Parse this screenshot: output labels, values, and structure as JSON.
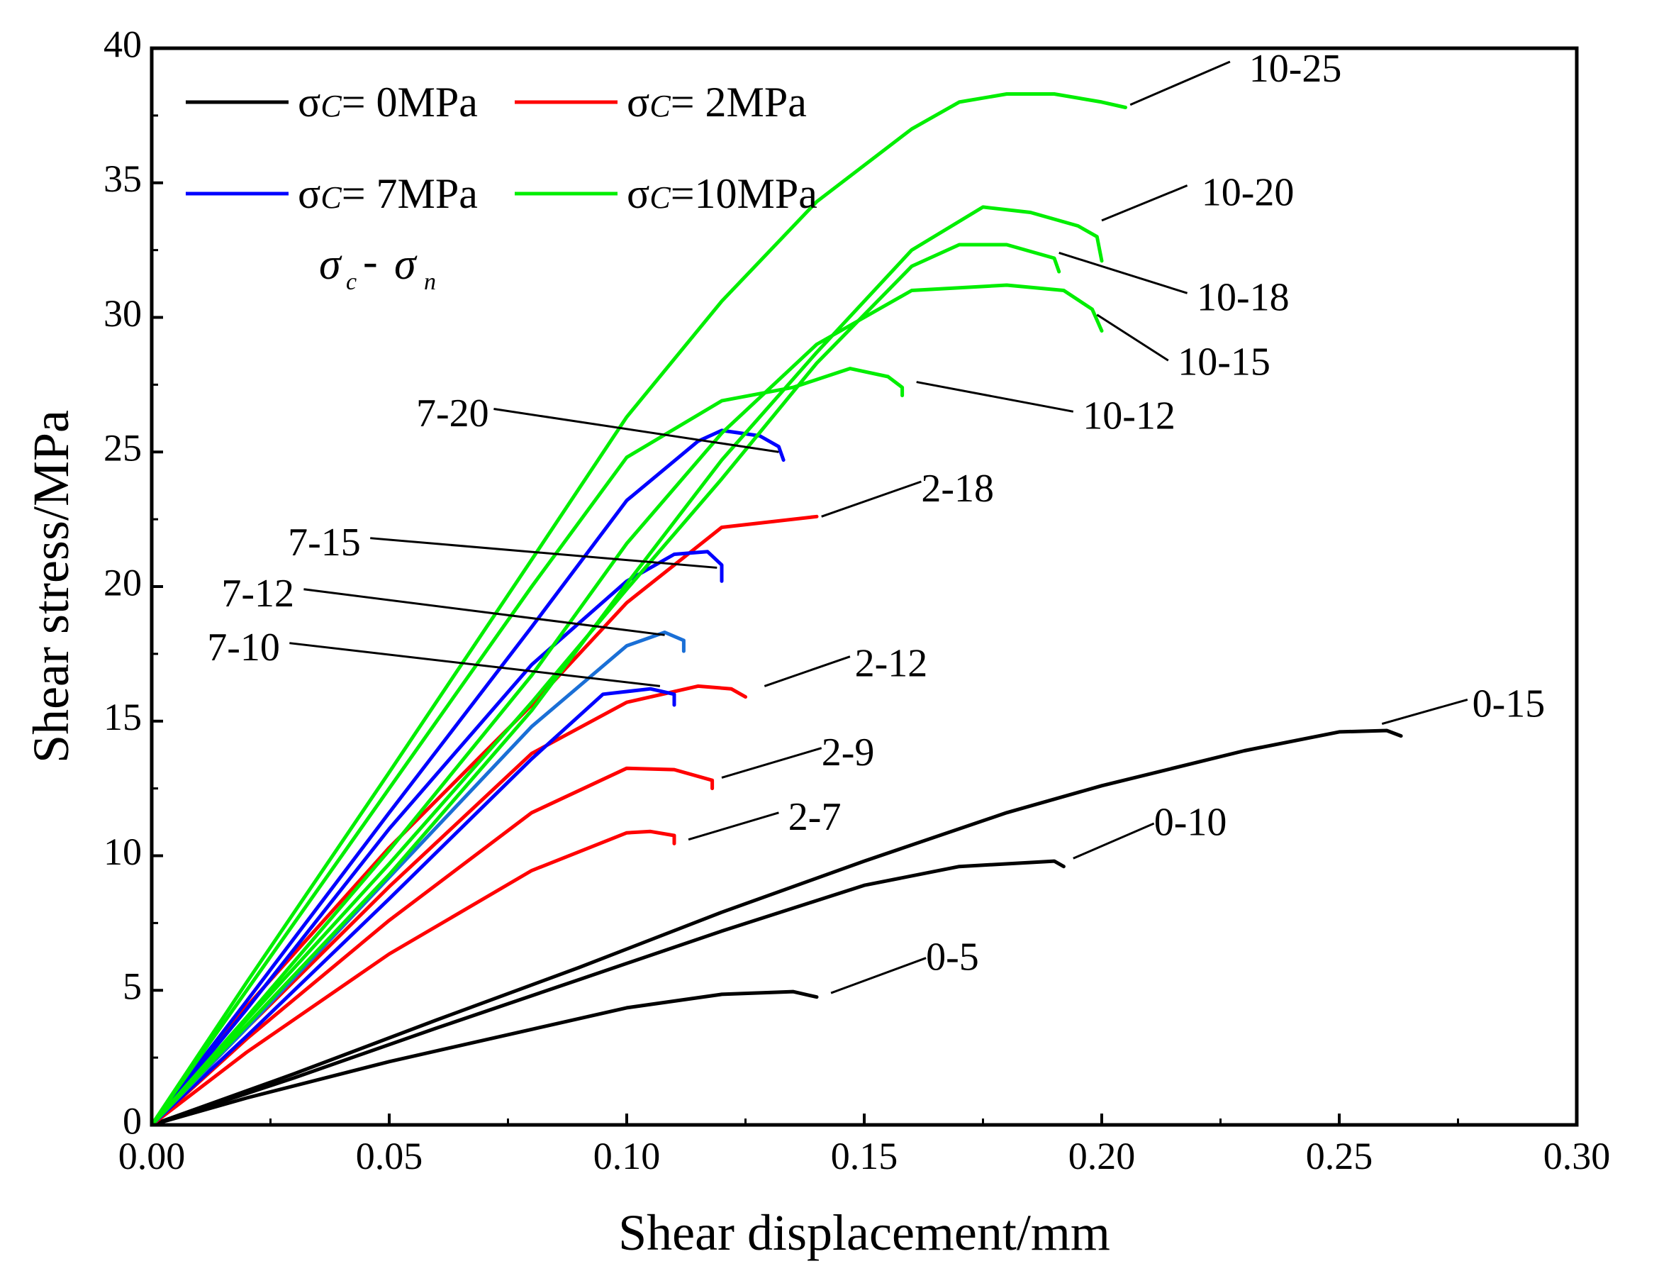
{
  "chart_data": {
    "type": "line",
    "xlabel": "Shear displacement/mm",
    "ylabel": "Shear stress/MPa",
    "xlim": [
      0,
      0.3
    ],
    "ylim": [
      0,
      40
    ],
    "xticks": [
      "0.00",
      "0.05",
      "0.10",
      "0.15",
      "0.20",
      "0.25",
      "0.30"
    ],
    "yticks": [
      "0",
      "5",
      "10",
      "15",
      "20",
      "25",
      "30",
      "35",
      "40"
    ],
    "grid": false,
    "legend_position": "top-left",
    "legend": [
      {
        "label": "σc= 0MPa",
        "sym": "σ",
        "sub": "C",
        "rest": "= 0MPa",
        "color": "#000000"
      },
      {
        "label": "σc= 2MPa",
        "sym": "σ",
        "sub": "C",
        "rest": "= 2MPa",
        "color": "#ff0000"
      },
      {
        "label": "σc= 7MPa",
        "sym": "σ",
        "sub": "C",
        "rest": "= 7MPa",
        "color": "#0000ff"
      },
      {
        "label": "σc=10MPa",
        "sym": "σ",
        "sub": "C",
        "rest": "=10MPa",
        "color": "#00ee00"
      }
    ],
    "annotation": {
      "s1": "σ",
      "sub1": "c",
      "dash": "-",
      "s2": "σ",
      "sub2": "n"
    },
    "series": [
      {
        "name": "0-5",
        "group": "0MPa",
        "color": "#000000",
        "x": [
          0,
          0.02,
          0.05,
          0.08,
          0.1,
          0.12,
          0.135,
          0.14
        ],
        "y": [
          0,
          1.0,
          2.35,
          3.55,
          4.35,
          4.85,
          4.95,
          4.75
        ]
      },
      {
        "name": "0-10",
        "group": "0MPa",
        "color": "#000000",
        "x": [
          0,
          0.03,
          0.06,
          0.09,
          0.12,
          0.15,
          0.17,
          0.19,
          0.192
        ],
        "y": [
          0,
          1.75,
          3.6,
          5.4,
          7.2,
          8.9,
          9.6,
          9.8,
          9.6
        ]
      },
      {
        "name": "0-15",
        "group": "0MPa",
        "color": "#000000",
        "x": [
          0,
          0.03,
          0.06,
          0.09,
          0.12,
          0.15,
          0.18,
          0.2,
          0.23,
          0.25,
          0.26,
          0.263
        ],
        "y": [
          0,
          1.9,
          3.9,
          5.85,
          7.9,
          9.8,
          11.6,
          12.6,
          13.9,
          14.6,
          14.65,
          14.45
        ]
      },
      {
        "name": "2-7",
        "group": "2MPa",
        "color": "#ff0000",
        "x": [
          0,
          0.02,
          0.05,
          0.08,
          0.1,
          0.105,
          0.11,
          0.11
        ],
        "y": [
          0,
          2.7,
          6.35,
          9.45,
          10.85,
          10.9,
          10.75,
          10.45
        ]
      },
      {
        "name": "2-9",
        "group": "2MPa",
        "color": "#ff0000",
        "x": [
          0,
          0.02,
          0.05,
          0.08,
          0.1,
          0.11,
          0.118,
          0.118
        ],
        "y": [
          0,
          3.2,
          7.6,
          11.6,
          13.25,
          13.2,
          12.8,
          12.5
        ]
      },
      {
        "name": "2-12",
        "group": "2MPa",
        "color": "#ff0000",
        "x": [
          0,
          0.02,
          0.05,
          0.08,
          0.1,
          0.115,
          0.122,
          0.125
        ],
        "y": [
          0,
          3.6,
          8.85,
          13.8,
          15.7,
          16.3,
          16.2,
          15.9
        ]
      },
      {
        "name": "2-18",
        "group": "2MPa",
        "color": "#ff0000",
        "x": [
          0,
          0.02,
          0.05,
          0.08,
          0.1,
          0.12,
          0.14
        ],
        "y": [
          0,
          4.4,
          10.3,
          15.6,
          19.4,
          22.2,
          22.6
        ]
      },
      {
        "name": "7-10",
        "group": "7MPa",
        "color": "#0000ff",
        "x": [
          0,
          0.02,
          0.05,
          0.08,
          0.095,
          0.105,
          0.11,
          0.11
        ],
        "y": [
          0,
          3.3,
          8.4,
          13.6,
          16.0,
          16.2,
          16.0,
          15.6
        ]
      },
      {
        "name": "7-12",
        "group": "7MPa",
        "color": "#1a6fd6",
        "x": [
          0,
          0.02,
          0.05,
          0.08,
          0.1,
          0.108,
          0.112,
          0.112
        ],
        "y": [
          0,
          3.6,
          9.2,
          14.8,
          17.8,
          18.3,
          18.0,
          17.6
        ]
      },
      {
        "name": "7-15",
        "group": "7MPa",
        "color": "#0000ff",
        "x": [
          0,
          0.02,
          0.05,
          0.08,
          0.1,
          0.11,
          0.117,
          0.12,
          0.12
        ],
        "y": [
          0,
          4.3,
          11.0,
          17.1,
          20.2,
          21.2,
          21.3,
          20.8,
          20.2
        ]
      },
      {
        "name": "7-20",
        "group": "7MPa",
        "color": "#0000ff",
        "x": [
          0,
          0.02,
          0.05,
          0.08,
          0.1,
          0.115,
          0.12,
          0.128,
          0.132,
          0.133
        ],
        "y": [
          0,
          4.6,
          11.6,
          18.5,
          23.2,
          25.4,
          25.8,
          25.6,
          25.2,
          24.7
        ]
      },
      {
        "name": "10-12",
        "group": "10MPa",
        "color": "#00ee00",
        "x": [
          0,
          0.02,
          0.05,
          0.08,
          0.1,
          0.12,
          0.135,
          0.147,
          0.155,
          0.158,
          0.158
        ],
        "y": [
          0,
          5.0,
          12.5,
          20.0,
          24.8,
          26.9,
          27.4,
          28.1,
          27.8,
          27.4,
          27.1
        ]
      },
      {
        "name": "10-15",
        "group": "10MPa",
        "color": "#00ee00",
        "x": [
          0,
          0.02,
          0.05,
          0.08,
          0.1,
          0.12,
          0.14,
          0.16,
          0.18,
          0.192,
          0.198,
          0.2
        ],
        "y": [
          0,
          4.0,
          10.2,
          16.7,
          21.6,
          25.7,
          29.0,
          31.0,
          31.2,
          31.0,
          30.3,
          29.5
        ]
      },
      {
        "name": "10-18",
        "group": "10MPa",
        "color": "#00ee00",
        "x": [
          0,
          0.02,
          0.05,
          0.08,
          0.1,
          0.12,
          0.14,
          0.16,
          0.17,
          0.18,
          0.19,
          0.191
        ],
        "y": [
          0,
          3.9,
          9.7,
          15.7,
          19.9,
          24.0,
          28.3,
          31.9,
          32.7,
          32.7,
          32.2,
          31.7
        ]
      },
      {
        "name": "10-20",
        "group": "10MPa",
        "color": "#00ee00",
        "x": [
          0,
          0.02,
          0.05,
          0.08,
          0.1,
          0.12,
          0.14,
          0.16,
          0.175,
          0.185,
          0.195,
          0.199,
          0.2
        ],
        "y": [
          0,
          3.7,
          9.3,
          15.4,
          20.1,
          24.7,
          28.7,
          32.5,
          34.1,
          33.9,
          33.4,
          33.0,
          32.1
        ]
      },
      {
        "name": "10-25",
        "group": "10MPa",
        "color": "#00ee00",
        "x": [
          0,
          0.02,
          0.05,
          0.08,
          0.1,
          0.12,
          0.14,
          0.16,
          0.17,
          0.18,
          0.19,
          0.2,
          0.205
        ],
        "y": [
          0,
          5.3,
          13.1,
          21.0,
          26.3,
          30.6,
          34.3,
          37.0,
          38.0,
          38.3,
          38.3,
          38.0,
          37.8
        ]
      }
    ],
    "callouts": [
      {
        "label": "10-25",
        "anchor": [
          0.206,
          37.9
        ],
        "end": [
          0.227,
          39.5
        ],
        "label_at": [
          0.231,
          39.1
        ],
        "align": "start"
      },
      {
        "label": "10-20",
        "anchor": [
          0.2,
          33.6
        ],
        "end": [
          0.218,
          34.9
        ],
        "label_at": [
          0.221,
          34.5
        ],
        "align": "start"
      },
      {
        "label": "10-18",
        "anchor": [
          0.191,
          32.4
        ],
        "end": [
          0.218,
          30.9
        ],
        "label_at": [
          0.22,
          30.6
        ],
        "align": "start"
      },
      {
        "label": "10-15",
        "anchor": [
          0.199,
          30.1
        ],
        "end": [
          0.214,
          28.4
        ],
        "label_at": [
          0.216,
          28.2
        ],
        "align": "start"
      },
      {
        "label": "10-12",
        "anchor": [
          0.161,
          27.6
        ],
        "end": [
          0.194,
          26.5
        ],
        "label_at": [
          0.196,
          26.2
        ],
        "align": "start"
      },
      {
        "label": "2-18",
        "anchor": [
          0.141,
          22.6
        ],
        "end": [
          0.162,
          23.9
        ],
        "label_at": [
          0.162,
          23.5
        ],
        "align": "start"
      },
      {
        "label": "2-12",
        "anchor": [
          0.129,
          16.3
        ],
        "end": [
          0.147,
          17.4
        ],
        "label_at": [
          0.148,
          17.0
        ],
        "align": "start"
      },
      {
        "label": "2-9",
        "anchor": [
          0.12,
          12.9
        ],
        "end": [
          0.141,
          14.0
        ],
        "label_at": [
          0.141,
          13.7
        ],
        "align": "start"
      },
      {
        "label": "2-7",
        "anchor": [
          0.113,
          10.6
        ],
        "end": [
          0.132,
          11.6
        ],
        "label_at": [
          0.134,
          11.3
        ],
        "align": "start"
      },
      {
        "label": "0-15",
        "anchor": [
          0.259,
          14.9
        ],
        "end": [
          0.277,
          15.8
        ],
        "label_at": [
          0.278,
          15.5
        ],
        "align": "start"
      },
      {
        "label": "0-10",
        "anchor": [
          0.194,
          9.9
        ],
        "end": [
          0.211,
          11.2
        ],
        "label_at": [
          0.211,
          11.1
        ],
        "align": "start"
      },
      {
        "label": "0-5",
        "anchor": [
          0.143,
          4.9
        ],
        "end": [
          0.163,
          6.2
        ],
        "label_at": [
          0.163,
          6.1
        ],
        "align": "start"
      },
      {
        "label": "7-20",
        "anchor": [
          0.132,
          25.0
        ],
        "end": [
          0.072,
          26.6
        ],
        "label_at": [
          0.071,
          26.3
        ],
        "align": "end"
      },
      {
        "label": "7-15",
        "anchor": [
          0.119,
          20.7
        ],
        "end": [
          0.046,
          21.8
        ],
        "label_at": [
          0.044,
          21.5
        ],
        "align": "end"
      },
      {
        "label": "7-12",
        "anchor": [
          0.108,
          18.2
        ],
        "end": [
          0.032,
          19.9
        ],
        "label_at": [
          0.03,
          19.6
        ],
        "align": "end"
      },
      {
        "label": "7-10",
        "anchor": [
          0.107,
          16.3
        ],
        "end": [
          0.029,
          17.9
        ],
        "label_at": [
          0.027,
          17.6
        ],
        "align": "end"
      }
    ]
  }
}
